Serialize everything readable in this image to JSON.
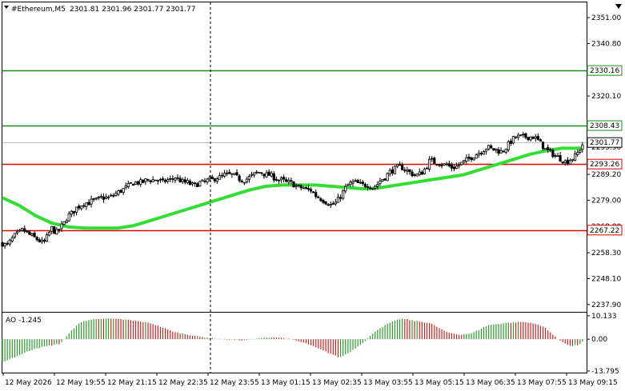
{
  "header": {
    "symbol_label": "#Ethereum,M5",
    "ohlc": "2301.81 2301.96 2301.77 2301.77"
  },
  "ao_label": "AO -1.245",
  "chart_data": [
    {
      "type": "candlestick",
      "title": "#Ethereum,M5",
      "ylim": [
        2235,
        2357
      ],
      "y_ticks": [
        "2351.00",
        "2340.80",
        "2330.16",
        "2320.10",
        "2308.43",
        "2299.90",
        "2289.20",
        "2279.00",
        "2268.80",
        "2258.30",
        "2248.10",
        "2237.90"
      ],
      "x_ticks": [
        "12 May 2026",
        "12 May 19:55",
        "12 May 21:15",
        "12 May 22:35",
        "12 May 23:55",
        "13 May 01:15",
        "13 May 02:35",
        "13 May 03:55",
        "13 May 05:15",
        "13 May 06:35",
        "13 May 07:55",
        "13 May 09:15"
      ],
      "x_tick_start": "12 May 18:35",
      "bar_interval_minutes": 5,
      "horizontal_lines": [
        {
          "value": 2330.16,
          "color": "#1e8c1e",
          "label": "2330.16"
        },
        {
          "value": 2308.43,
          "color": "#1e8c1e",
          "label": "2308.43"
        },
        {
          "value": 2293.26,
          "color": "#dd0000",
          "label": "2293.26"
        },
        {
          "value": 2267.22,
          "color": "#dd0000",
          "label": "2267.22"
        }
      ],
      "current_price": {
        "value": 2301.77,
        "label": "2301.77"
      },
      "vertical_marker_time": "12 May 22:40",
      "close_path": [
        [
          0,
          2262
        ],
        [
          5,
          2261
        ],
        [
          10,
          2263
        ],
        [
          15,
          2265
        ],
        [
          20,
          2266
        ],
        [
          25,
          2267.5
        ],
        [
          30,
          2266
        ],
        [
          35,
          2265
        ],
        [
          40,
          2264
        ],
        [
          45,
          2263
        ],
        [
          50,
          2262
        ],
        [
          55,
          2265
        ],
        [
          60,
          2268
        ],
        [
          65,
          2266
        ],
        [
          70,
          2268
        ],
        [
          75,
          2270
        ],
        [
          80,
          2273
        ],
        [
          85,
          2274
        ],
        [
          90,
          2276
        ],
        [
          95,
          2277
        ],
        [
          100,
          2278
        ],
        [
          105,
          2278
        ],
        [
          110,
          2279
        ],
        [
          115,
          2279
        ],
        [
          120,
          2280
        ],
        [
          125,
          2280
        ],
        [
          130,
          2280
        ],
        [
          135,
          2281
        ],
        [
          140,
          2282
        ],
        [
          145,
          2283
        ],
        [
          150,
          2284
        ],
        [
          155,
          2285
        ],
        [
          160,
          2286
        ],
        [
          165,
          2286
        ],
        [
          170,
          2286
        ],
        [
          175,
          2287
        ],
        [
          180,
          2287
        ],
        [
          185,
          2287
        ],
        [
          190,
          2287
        ],
        [
          195,
          2286
        ],
        [
          200,
          2287
        ],
        [
          205,
          2287
        ],
        [
          210,
          2288
        ],
        [
          215,
          2287
        ],
        [
          220,
          2286
        ],
        [
          225,
          2286
        ],
        [
          230,
          2285
        ],
        [
          235,
          2285
        ],
        [
          240,
          2286
        ],
        [
          245,
          2286
        ],
        [
          250,
          2287
        ],
        [
          255,
          2287
        ],
        [
          260,
          2288
        ],
        [
          265,
          2288
        ],
        [
          270,
          2289
        ],
        [
          275,
          2289
        ],
        [
          280,
          2289
        ],
        [
          285,
          2288
        ],
        [
          290,
          2287
        ],
        [
          295,
          2287
        ],
        [
          300,
          2288
        ],
        [
          305,
          2289
        ],
        [
          310,
          2290
        ],
        [
          315,
          2290
        ],
        [
          320,
          2289
        ],
        [
          325,
          2289
        ],
        [
          330,
          2288
        ],
        [
          335,
          2287
        ],
        [
          340,
          2287
        ],
        [
          345,
          2286
        ],
        [
          350,
          2286
        ],
        [
          355,
          2285
        ],
        [
          360,
          2284
        ],
        [
          365,
          2284
        ],
        [
          370,
          2283
        ],
        [
          375,
          2283
        ],
        [
          380,
          2281
        ],
        [
          385,
          2280
        ],
        [
          390,
          2279
        ],
        [
          395,
          2278
        ],
        [
          400,
          2277
        ],
        [
          405,
          2278
        ],
        [
          410,
          2280
        ],
        [
          415,
          2283
        ],
        [
          420,
          2285
        ],
        [
          425,
          2286
        ],
        [
          430,
          2286
        ],
        [
          435,
          2285
        ],
        [
          440,
          2285
        ],
        [
          445,
          2285
        ],
        [
          450,
          2284
        ],
        [
          455,
          2285
        ],
        [
          460,
          2287
        ],
        [
          465,
          2288
        ],
        [
          470,
          2290
        ],
        [
          475,
          2291
        ],
        [
          480,
          2292
        ],
        [
          485,
          2292
        ],
        [
          490,
          2291
        ],
        [
          495,
          2290
        ],
        [
          500,
          2289
        ],
        [
          505,
          2289
        ],
        [
          510,
          2290
        ],
        [
          515,
          2292
        ],
        [
          520,
          2295
        ],
        [
          525,
          2294
        ],
        [
          530,
          2294
        ],
        [
          535,
          2293
        ],
        [
          540,
          2293
        ],
        [
          545,
          2292
        ],
        [
          550,
          2292
        ],
        [
          555,
          2293
        ],
        [
          560,
          2294
        ],
        [
          565,
          2295
        ],
        [
          570,
          2296
        ],
        [
          575,
          2297
        ],
        [
          580,
          2298
        ],
        [
          585,
          2299
        ],
        [
          590,
          2300
        ],
        [
          595,
          2299
        ],
        [
          600,
          2299
        ],
        [
          605,
          2298
        ],
        [
          610,
          2299
        ],
        [
          615,
          2301
        ],
        [
          620,
          2303
        ],
        [
          625,
          2304
        ],
        [
          630,
          2304
        ],
        [
          635,
          2304
        ],
        [
          640,
          2304
        ],
        [
          645,
          2304
        ],
        [
          650,
          2303
        ],
        [
          655,
          2301
        ],
        [
          660,
          2299
        ],
        [
          665,
          2298
        ],
        [
          670,
          2297
        ],
        [
          675,
          2296
        ],
        [
          680,
          2295
        ],
        [
          685,
          2294
        ],
        [
          690,
          2295
        ],
        [
          695,
          2296
        ],
        [
          700,
          2298
        ],
        [
          705,
          2301
        ]
      ],
      "series": [
        {
          "name": "",
          "type": "moving_average",
          "color": "#33dd33",
          "points": [
            [
              0,
              2280
            ],
            [
              20,
              2277
            ],
            [
              40,
              2273
            ],
            [
              60,
              2270
            ],
            [
              80,
              2268.5
            ],
            [
              100,
              2268
            ],
            [
              120,
              2268
            ],
            [
              140,
              2268
            ],
            [
              160,
              2269
            ],
            [
              180,
              2271
            ],
            [
              200,
              2273
            ],
            [
              220,
              2275
            ],
            [
              240,
              2277
            ],
            [
              260,
              2279
            ],
            [
              280,
              2281
            ],
            [
              300,
              2283
            ],
            [
              320,
              2284.5
            ],
            [
              340,
              2285
            ],
            [
              360,
              2285
            ],
            [
              380,
              2285
            ],
            [
              400,
              2284.5
            ],
            [
              420,
              2284
            ],
            [
              440,
              2283.5
            ],
            [
              460,
              2284
            ],
            [
              480,
              2285
            ],
            [
              500,
              2286
            ],
            [
              520,
              2287
            ],
            [
              540,
              2288
            ],
            [
              560,
              2289
            ],
            [
              580,
              2291
            ],
            [
              600,
              2293
            ],
            [
              620,
              2295
            ],
            [
              640,
              2297
            ],
            [
              660,
              2298.5
            ],
            [
              680,
              2299.5
            ],
            [
              700,
              2299.5
            ],
            [
              705,
              2299.5
            ]
          ]
        }
      ]
    },
    {
      "type": "bar",
      "title": "AO -1.245",
      "ylim": [
        -14.5,
        11.5
      ],
      "y_ticks": [
        "10.133",
        "0.00",
        "-13.795"
      ],
      "positive_color": "#2a9a2a",
      "negative_color": "#cc2222",
      "values_path": [
        [
          0,
          -10
        ],
        [
          40,
          -4
        ],
        [
          70,
          -2
        ],
        [
          90,
          6
        ],
        [
          100,
          8
        ],
        [
          120,
          9
        ],
        [
          150,
          8.5
        ],
        [
          180,
          7
        ],
        [
          210,
          3
        ],
        [
          240,
          1
        ],
        [
          260,
          0.2
        ],
        [
          290,
          -0.5
        ],
        [
          310,
          0.2
        ],
        [
          330,
          1
        ],
        [
          350,
          0
        ],
        [
          370,
          -2
        ],
        [
          390,
          -5
        ],
        [
          410,
          -8
        ],
        [
          425,
          -5
        ],
        [
          440,
          -1
        ],
        [
          455,
          4
        ],
        [
          470,
          7
        ],
        [
          485,
          9
        ],
        [
          500,
          8
        ],
        [
          520,
          7
        ],
        [
          540,
          3
        ],
        [
          555,
          2
        ],
        [
          570,
          2.5
        ],
        [
          590,
          6
        ],
        [
          610,
          7
        ],
        [
          630,
          7.5
        ],
        [
          645,
          7
        ],
        [
          660,
          5
        ],
        [
          675,
          0
        ],
        [
          690,
          -3
        ],
        [
          700,
          -2.5
        ],
        [
          705,
          -1.245
        ]
      ]
    }
  ]
}
